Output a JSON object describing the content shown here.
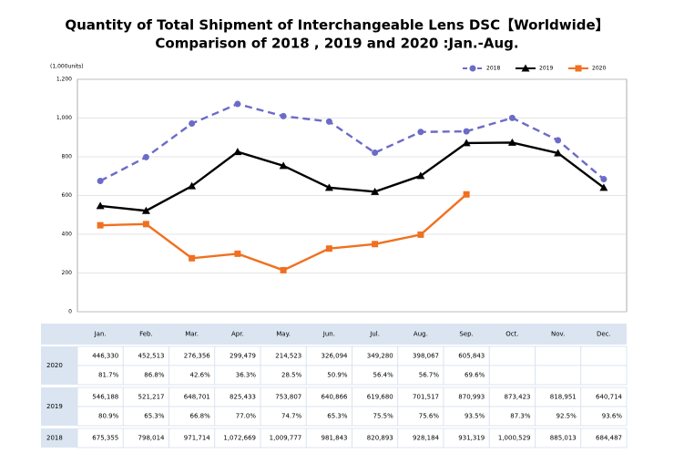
{
  "chart_data": {
    "type": "line",
    "title": "Quantity of Total Shipment of Interchangeable Lens DSC【Worldwide】",
    "subtitle": "Comparison of 2018 , 2019 and 2020 :Jan.-Aug.",
    "y_label": "(1,000units)",
    "categories": [
      "Jan.",
      "Feb.",
      "Mar.",
      "Apr.",
      "May.",
      "Jun.",
      "Jul.",
      "Aug.",
      "Sep.",
      "Oct.",
      "Nov.",
      "Dec."
    ],
    "ylim": [
      0,
      1200
    ],
    "yticks": [
      0,
      200,
      400,
      600,
      800,
      {
        "value": 1000,
        "label": "1,000"
      },
      {
        "value": 1200,
        "label": "1,200"
      }
    ],
    "legend": "top-right",
    "series": [
      {
        "name": "2018",
        "color": "#6b6bc8",
        "dashed": true,
        "marker": "circle",
        "values": [
          675.355,
          798.014,
          971.714,
          1072.669,
          1009.777,
          981.843,
          820.893,
          928.184,
          931.319,
          1000.529,
          885.013,
          684.487
        ]
      },
      {
        "name": "2019",
        "color": "#000000",
        "marker": "triangle",
        "values": [
          546.188,
          521.217,
          648.701,
          825.433,
          753.807,
          640.866,
          619.68,
          701.517,
          870.993,
          873.423,
          818.951,
          640.714
        ]
      },
      {
        "name": "2020",
        "color": "#f07020",
        "marker": "square",
        "values": [
          446.33,
          452.513,
          276.356,
          299.479,
          214.523,
          326.094,
          349.28,
          398.067,
          605.843,
          null,
          null,
          null
        ]
      }
    ]
  },
  "table": {
    "rows": [
      {
        "label": "2020",
        "values": [
          "446,330",
          "452,513",
          "276,356",
          "299,479",
          "214,523",
          "326,094",
          "349,280",
          "398,067",
          "605,843"
        ],
        "ratios": [
          "81.7%",
          "86.8%",
          "42.6%",
          "36.3%",
          "28.5%",
          "50.9%",
          "56.4%",
          "56.7%",
          "69.6%"
        ]
      },
      {
        "label": "2019",
        "values": [
          "546,188",
          "521,217",
          "648,701",
          "825,433",
          "753,807",
          "640,866",
          "619,680",
          "701,517",
          "870,993",
          "873,423",
          "818,951",
          "640,714"
        ],
        "ratios": [
          "80.9%",
          "65.3%",
          "66.8%",
          "77.0%",
          "74.7%",
          "65.3%",
          "75.5%",
          "75.6%",
          "93.5%",
          "87.3%",
          "92.5%",
          "93.6%"
        ]
      },
      {
        "label": "2018",
        "values": [
          "675,355",
          "798,014",
          "971,714",
          "1,072,669",
          "1,009,777",
          "981,843",
          "820,893",
          "928,184",
          "931,319",
          "1,000,529",
          "885,013",
          "684,487"
        ]
      }
    ]
  }
}
